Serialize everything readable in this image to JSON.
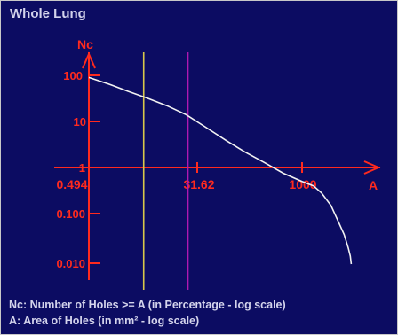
{
  "panel": {
    "title": "Whole Lung"
  },
  "chart_data": {
    "type": "line",
    "title": "Whole Lung",
    "xlabel": "A",
    "ylabel": "Nc",
    "x_scale": "log",
    "y_scale": "log",
    "x_ticks": [
      "0.494",
      "31.62",
      "1000"
    ],
    "y_ticks": [
      "100",
      "10",
      "1",
      "0.100",
      "0.010"
    ],
    "vlines": [
      {
        "x": 3.5,
        "color": "#d8c84a"
      },
      {
        "x": 17,
        "color": "#b018b0"
      }
    ],
    "series": [
      {
        "color": "#f2f2f2",
        "points": [
          [
            0.494,
            90
          ],
          [
            1,
            65
          ],
          [
            2,
            45
          ],
          [
            4,
            32
          ],
          [
            8,
            22
          ],
          [
            16,
            14
          ],
          [
            32,
            7.5
          ],
          [
            64,
            4
          ],
          [
            128,
            2.2
          ],
          [
            256,
            1.3
          ],
          [
            512,
            0.75
          ],
          [
            1000,
            0.5
          ],
          [
            1500,
            0.4
          ],
          [
            2000,
            0.28
          ],
          [
            2800,
            0.15
          ],
          [
            3600,
            0.07
          ],
          [
            4500,
            0.035
          ],
          [
            5200,
            0.018
          ],
          [
            5600,
            0.012
          ],
          [
            5800,
            0.008
          ]
        ]
      }
    ]
  },
  "footer": {
    "line1": "Nc: Number of Holes >= A (in Percentage - log scale)",
    "line2": "A: Area of Holes (in mm² - log scale)"
  }
}
